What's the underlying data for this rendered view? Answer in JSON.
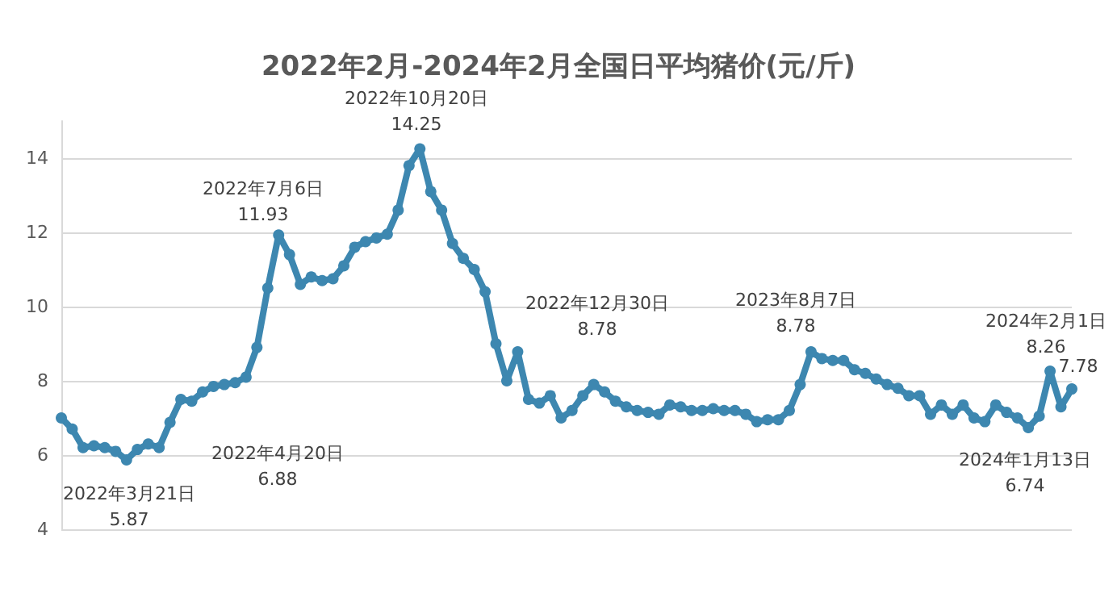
{
  "chart_data": {
    "type": "line",
    "title": "2022年2月-2024年2月全国日平均猪价(元/斤)",
    "categories": [
      null,
      null,
      null,
      null,
      null,
      null,
      null,
      null,
      null,
      null,
      null,
      null,
      null,
      null,
      null,
      null,
      null,
      null,
      null,
      null,
      null,
      null,
      null,
      null,
      null,
      null,
      null,
      null,
      null,
      null,
      null,
      null,
      null,
      null,
      null,
      null,
      null,
      null,
      null,
      null,
      null,
      null,
      null,
      null,
      null,
      null,
      null,
      null,
      null,
      null,
      null,
      null,
      null,
      null,
      null,
      null,
      null,
      null,
      null,
      null,
      null,
      null,
      null,
      null,
      null,
      null,
      null,
      null,
      null,
      null,
      null,
      null,
      null,
      null,
      null,
      null,
      null,
      null,
      null,
      null,
      null,
      null,
      null,
      null,
      null,
      null,
      null,
      null,
      null,
      null,
      null,
      null,
      null,
      null
    ],
    "series": [
      {
        "color": "#3d87b0",
        "values": [
          7.0,
          6.7,
          6.2,
          6.25,
          6.2,
          6.1,
          5.87,
          6.15,
          6.3,
          6.2,
          6.88,
          7.5,
          7.45,
          7.7,
          7.85,
          7.9,
          7.95,
          8.1,
          8.9,
          10.5,
          11.93,
          11.4,
          10.6,
          10.8,
          10.7,
          10.75,
          11.1,
          11.6,
          11.75,
          11.85,
          11.95,
          12.6,
          13.8,
          14.25,
          13.1,
          12.6,
          11.7,
          11.3,
          11.0,
          10.4,
          9.0,
          8.0,
          8.78,
          7.5,
          7.4,
          7.6,
          7.0,
          7.2,
          7.6,
          7.9,
          7.7,
          7.45,
          7.3,
          7.2,
          7.15,
          7.1,
          7.35,
          7.3,
          7.2,
          7.2,
          7.25,
          7.2,
          7.2,
          7.1,
          6.9,
          6.95,
          6.95,
          7.2,
          7.9,
          8.78,
          8.6,
          8.55,
          8.55,
          8.3,
          8.2,
          8.05,
          7.9,
          7.8,
          7.6,
          7.6,
          7.1,
          7.35,
          7.1,
          7.35,
          7.0,
          6.9,
          7.35,
          7.15,
          7.0,
          6.74,
          7.05,
          8.26,
          7.3,
          7.78
        ]
      }
    ],
    "ylim": [
      4,
      15
    ],
    "yticks": [
      4,
      6,
      8,
      10,
      12,
      14
    ],
    "tick_labels": "y",
    "grid": "y",
    "marker": "circle",
    "annotations": [
      "2022年3月21日\n5.87",
      "2022年4月20日\n6.88",
      "2022年7月6日\n11.93",
      "2022年10月20日\n14.25",
      "2022年12月30日\n8.78",
      "2023年8月7日\n8.78",
      "2024年2月1日\n8.26",
      "7.78",
      "2024年1月13日\n6.74"
    ]
  }
}
